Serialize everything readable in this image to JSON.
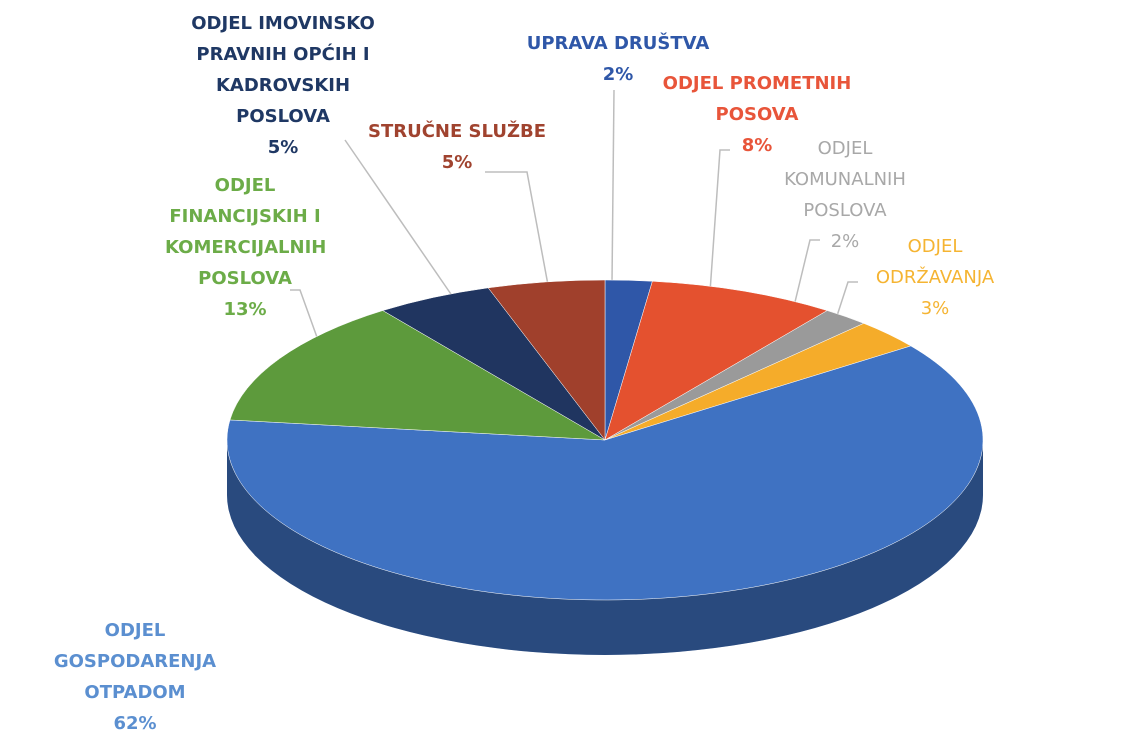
{
  "chart_data": {
    "type": "pie",
    "categories": [
      "UPRAVA DRUŠTVA",
      "ODJEL PROMETNIH POSOVA",
      "ODJEL KOMUNALNIH POSLOVA",
      "ODJEL ODRŽAVANJA",
      "ODJEL GOSPODARENJA OTPADOM",
      "ODJEL FINANCIJSKIH I KOMERCIJALNIH POSLOVA",
      "ODJEL IMOVINSKO PRAVNIH OPĆIH I KADROVSKIH POSLOVA",
      "STRUČNE SLUŽBE"
    ],
    "values": [
      2,
      8,
      2,
      3,
      62,
      13,
      5,
      5
    ],
    "value_labels": [
      "2%",
      "8%",
      "2%",
      "3%",
      "62%",
      "13%",
      "5%",
      "5%"
    ],
    "colors": [
      "#2f57a8",
      "#e4512f",
      "#9a9a9a",
      "#f5ac2a",
      "#3f72c2",
      "#5d9a3c",
      "#203560",
      "#a0402c"
    ],
    "label_colors": [
      "#2f57a8",
      "#e8553a",
      "#a8a8a8",
      "#f5b432",
      "#5b8fd0",
      "#6cac48",
      "#1f3864",
      "#a0432f"
    ]
  }
}
